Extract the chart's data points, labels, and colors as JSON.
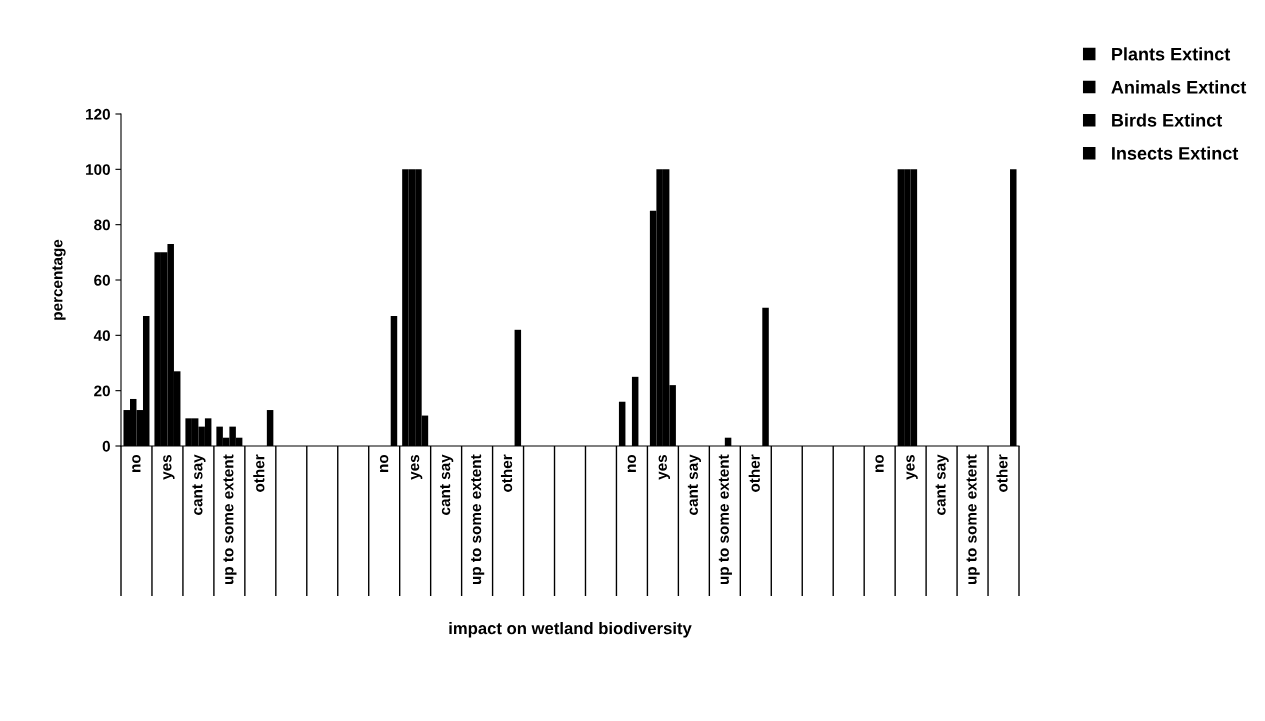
{
  "chart_data": {
    "type": "bar",
    "xlabel": "impact on wetland biodiversity",
    "ylabel": "percentage",
    "categories": [
      "no",
      "yes",
      "cant say",
      "up to some extent",
      "other",
      null,
      null,
      null,
      "no",
      "yes",
      "cant say",
      "up to some extent",
      "other",
      null,
      null,
      null,
      "no",
      "yes",
      "cant say",
      "up to some extent",
      "other",
      null,
      null,
      null,
      "no",
      "yes",
      "cant say",
      "up to some extent",
      "other"
    ],
    "series": [
      {
        "name": "Plants Extinct",
        "color": "#000000",
        "values": [
          13,
          70,
          10,
          7,
          0,
          0,
          0,
          0,
          0,
          100,
          0,
          0,
          0,
          0,
          0,
          0,
          16,
          85,
          0,
          0,
          0,
          0,
          0,
          0,
          0,
          100,
          0,
          0,
          0
        ]
      },
      {
        "name": "Animals Extinct",
        "color": "#000000",
        "values": [
          17,
          70,
          10,
          3,
          0,
          0,
          0,
          0,
          0,
          100,
          0,
          0,
          0,
          0,
          0,
          0,
          0,
          100,
          0,
          0,
          0,
          0,
          0,
          0,
          0,
          100,
          0,
          0,
          0
        ]
      },
      {
        "name": "Birds Extinct",
        "color": "#000000",
        "values": [
          13,
          73,
          7,
          7,
          0,
          0,
          0,
          0,
          0,
          100,
          0,
          0,
          0,
          0,
          0,
          0,
          25,
          100,
          0,
          3,
          0,
          0,
          0,
          0,
          0,
          100,
          0,
          0,
          0
        ]
      },
      {
        "name": "Insects Extinct",
        "color": "#000000",
        "values": [
          47,
          27,
          10,
          3,
          13,
          0,
          0,
          0,
          47,
          11,
          0,
          0,
          42,
          0,
          0,
          0,
          0,
          22,
          0,
          0,
          50,
          0,
          0,
          0,
          0,
          0,
          0,
          0,
          100
        ]
      }
    ],
    "ylim": [
      0,
      120
    ],
    "yticks": [
      0,
      20,
      40,
      60,
      80,
      100,
      120
    ],
    "grid": false,
    "legend": "top right"
  }
}
